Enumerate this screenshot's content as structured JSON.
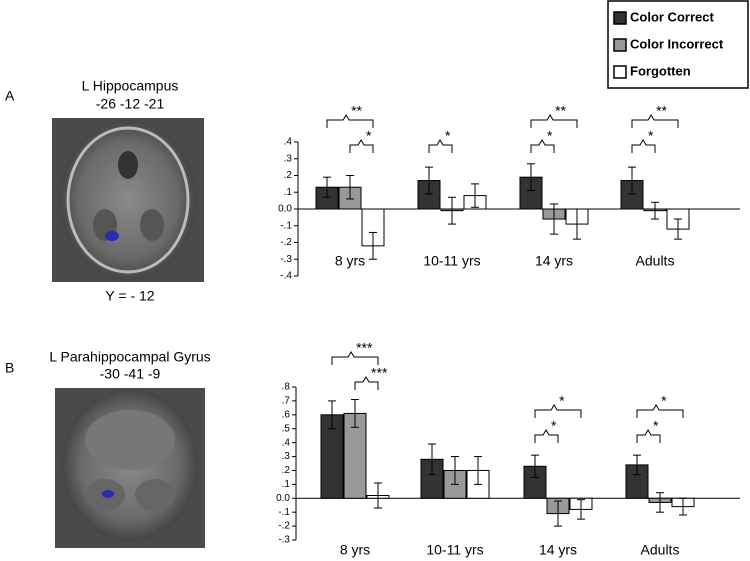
{
  "chart_data": [
    {
      "type": "bar",
      "panel": "A",
      "title": "L Hippocampus",
      "subtitle": "-26 -12 -21",
      "annotation": "Y = - 12",
      "categories": [
        "8 yrs",
        "10-11 yrs",
        "14 yrs",
        "Adults"
      ],
      "series": [
        {
          "name": "Color Correct",
          "color": "#333333",
          "values": [
            0.13,
            0.17,
            0.19,
            0.17
          ],
          "errors": [
            0.06,
            0.08,
            0.08,
            0.08
          ]
        },
        {
          "name": "Color Incorrect",
          "color": "#999999",
          "values": [
            0.13,
            -0.01,
            -0.06,
            -0.01
          ],
          "errors": [
            0.07,
            0.08,
            0.09,
            0.05
          ]
        },
        {
          "name": "Forgotten",
          "color": "#ffffff",
          "values": [
            -0.22,
            0.08,
            -0.09,
            -0.12
          ],
          "errors": [
            0.08,
            0.07,
            0.09,
            0.06
          ]
        }
      ],
      "ylim": [
        -0.4,
        0.4
      ],
      "yticks": [
        {
          "value": 0.4,
          "label": ".4"
        },
        {
          "value": 0.3,
          "label": ".3"
        },
        {
          "value": 0.2,
          "label": ".2"
        },
        {
          "value": 0.1,
          "label": ".1"
        },
        {
          "value": 0,
          "label": "0.0"
        },
        {
          "value": -0.1,
          "label": "-.1"
        },
        {
          "value": -0.2,
          "label": "-.2"
        },
        {
          "value": -0.3,
          "label": "-.3"
        },
        {
          "value": -0.4,
          "label": "-.4"
        }
      ],
      "significance": [
        "**",
        "*",
        "*",
        "**",
        "*",
        "**",
        "*"
      ]
    },
    {
      "type": "bar",
      "panel": "B",
      "title": "L Parahippocampal Gyrus",
      "subtitle": "-30 -41 -9",
      "categories": [
        "8 yrs",
        "10-11 yrs",
        "14 yrs",
        "Adults"
      ],
      "series": [
        {
          "color": "#333333",
          "values": [
            0.6,
            0.28,
            0.23,
            0.24
          ],
          "errors": [
            0.1,
            0.11,
            0.08,
            0.07
          ]
        },
        {
          "color": "#999999",
          "values": [
            0.61,
            0.2,
            -0.11,
            -0.03
          ],
          "errors": [
            0.1,
            0.1,
            0.09,
            0.07
          ]
        },
        {
          "color": "#ffffff",
          "values": [
            0.02,
            0.2,
            -0.08,
            -0.06
          ],
          "errors": [
            0.09,
            0.1,
            0.07,
            0.06
          ]
        }
      ],
      "ylim": [
        -0.3,
        0.8
      ],
      "yticks": [
        {
          "value": 0.8,
          "label": ".8"
        },
        {
          "value": 0.7,
          "label": ".7"
        },
        {
          "value": 0.6,
          "label": ".6"
        },
        {
          "value": 0.5,
          "label": ".5"
        },
        {
          "value": 0.4,
          "label": ".4"
        },
        {
          "value": 0.3,
          "label": ".3"
        },
        {
          "value": 0.2,
          "label": ".2"
        },
        {
          "value": 0.1,
          "label": ".1"
        },
        {
          "value": 0,
          "label": "0.0"
        },
        {
          "value": -0.1,
          "label": "-.1"
        },
        {
          "value": -0.2,
          "label": "-.2"
        },
        {
          "value": -0.3,
          "label": "-.3"
        }
      ],
      "significance": [
        "***",
        "***",
        "*",
        "*",
        "*",
        "*"
      ]
    }
  ]
}
